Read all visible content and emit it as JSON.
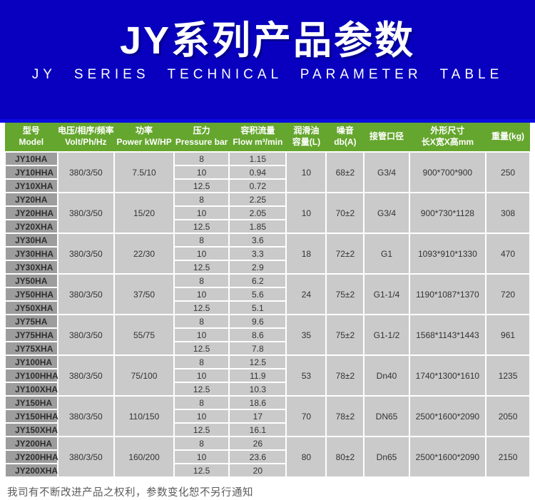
{
  "hero": {
    "title": "JY系列产品参数",
    "subtitle": "JY SERIES TECHNICAL PARAMETER TABLE",
    "bg_color": "#0800BE",
    "accent_strip_color": "#0A0AE2"
  },
  "table": {
    "header_color": "#65A62E",
    "model_cell_color": "#9D9D9D",
    "data_cell_color": "#CACACA",
    "columns": [
      {
        "zh": "型号",
        "en": "Model"
      },
      {
        "zh": "电压/相序/频率",
        "en": "Volt/Ph/Hz"
      },
      {
        "zh": "功率",
        "en": "Power kW/HP"
      },
      {
        "zh": "压力",
        "en": "Pressure bar"
      },
      {
        "zh": "容积流量",
        "en": "Flow m³/min"
      },
      {
        "zh": "润滑油",
        "en": "容量(L)"
      },
      {
        "zh": "噪音",
        "en": "db(A)"
      },
      {
        "zh": "接管口径",
        "en": ""
      },
      {
        "zh": "外形尺寸",
        "en": "长X宽X高mm"
      },
      {
        "zh": "重量(kg)",
        "en": ""
      }
    ],
    "groups": [
      {
        "models": [
          "JY10HA",
          "JY10HHA",
          "JY10XHA"
        ],
        "volt": "380/3/50",
        "power": "7.5/10",
        "pressures": [
          "8",
          "10",
          "12.5"
        ],
        "flows": [
          "1.15",
          "0.94",
          "0.72"
        ],
        "oil": "10",
        "noise": "68±2",
        "pipe": "G3/4",
        "dims": "900*700*900",
        "weight": "250"
      },
      {
        "models": [
          "JY20HA",
          "JY20HHA",
          "JY20XHA"
        ],
        "volt": "380/3/50",
        "power": "15/20",
        "pressures": [
          "8",
          "10",
          "12.5"
        ],
        "flows": [
          "2.25",
          "2.05",
          "1.85"
        ],
        "oil": "10",
        "noise": "70±2",
        "pipe": "G3/4",
        "dims": "900*730*1128",
        "weight": "308"
      },
      {
        "models": [
          "JY30HA",
          "JY30HHA",
          "JY30XHA"
        ],
        "volt": "380/3/50",
        "power": "22/30",
        "pressures": [
          "8",
          "10",
          "12.5"
        ],
        "flows": [
          "3.6",
          "3.3",
          "2.9"
        ],
        "oil": "18",
        "noise": "72±2",
        "pipe": "G1",
        "dims": "1093*910*1330",
        "weight": "470"
      },
      {
        "models": [
          "JY50HA",
          "JY50HHA",
          "JY50XHA"
        ],
        "volt": "380/3/50",
        "power": "37/50",
        "pressures": [
          "8",
          "10",
          "12.5"
        ],
        "flows": [
          "6.2",
          "5.6",
          "5.1"
        ],
        "oil": "24",
        "noise": "75±2",
        "pipe": "G1-1/4",
        "dims": "1190*1087*1370",
        "weight": "720"
      },
      {
        "models": [
          "JY75HA",
          "JY75HHA",
          "JY75XHA"
        ],
        "volt": "380/3/50",
        "power": "55/75",
        "pressures": [
          "8",
          "10",
          "12.5"
        ],
        "flows": [
          "9.6",
          "8.6",
          "7.8"
        ],
        "oil": "35",
        "noise": "75±2",
        "pipe": "G1-1/2",
        "dims": "1568*1143*1443",
        "weight": "961"
      },
      {
        "models": [
          "JY100HA",
          "JY100HHA",
          "JY100XHA"
        ],
        "volt": "380/3/50",
        "power": "75/100",
        "pressures": [
          "8",
          "10",
          "12.5"
        ],
        "flows": [
          "12.5",
          "11.9",
          "10.3"
        ],
        "oil": "53",
        "noise": "78±2",
        "pipe": "Dn40",
        "dims": "1740*1300*1610",
        "weight": "1235"
      },
      {
        "models": [
          "JY150HA",
          "JY150HHA",
          "JY150XHA"
        ],
        "volt": "380/3/50",
        "power": "110/150",
        "pressures": [
          "8",
          "10",
          "12.5"
        ],
        "flows": [
          "18.6",
          "17",
          "16.1"
        ],
        "oil": "70",
        "noise": "78±2",
        "pipe": "DN65",
        "dims": "2500*1600*2090",
        "weight": "2050"
      },
      {
        "models": [
          "JY200HA",
          "JY200HHA",
          "JY200XHA"
        ],
        "volt": "380/3/50",
        "power": "160/200",
        "pressures": [
          "8",
          "10",
          "12.5"
        ],
        "flows": [
          "26",
          "23.6",
          "20"
        ],
        "oil": "80",
        "noise": "80±2",
        "pipe": "Dn65",
        "dims": "2500*1600*2090",
        "weight": "2150"
      }
    ]
  },
  "footer": {
    "note": "我司有不断改进产品之权利，参数变化恕不另行通知"
  }
}
